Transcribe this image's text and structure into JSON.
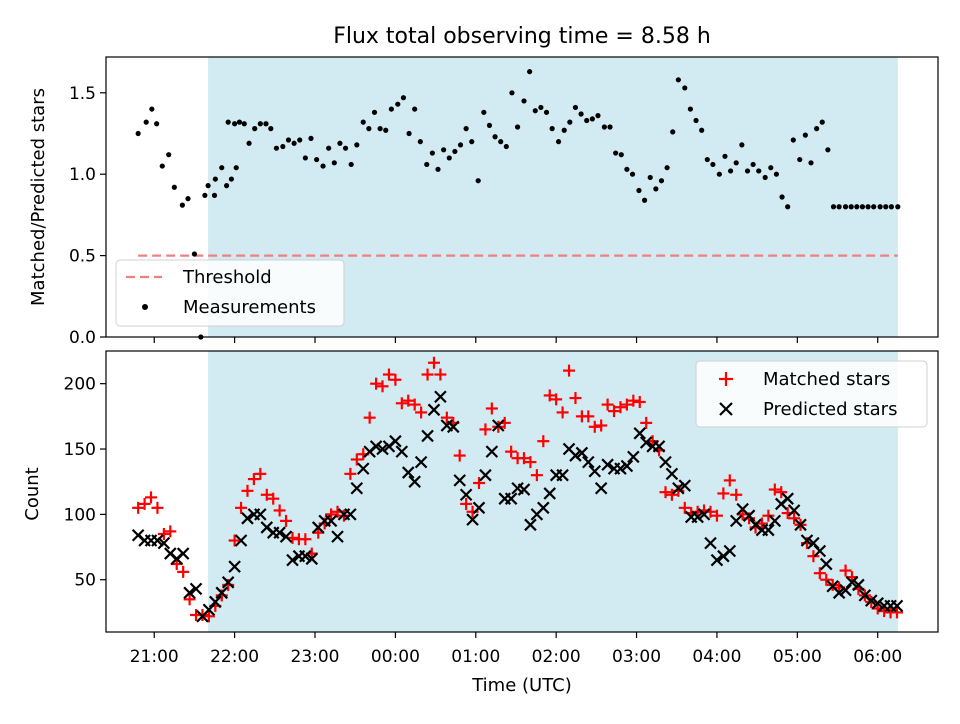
{
  "chart_data": [
    {
      "type": "scatter",
      "title": "Flux total observing time = 8.58 h",
      "xlabel": "",
      "ylabel": "Matched/Predicted stars",
      "ylim": [
        0,
        1.72
      ],
      "yticks": [
        "0.0",
        "0.5",
        "1.0",
        "1.5"
      ],
      "ytick_values": [
        0,
        0.5,
        1.0,
        1.5
      ],
      "grid": false,
      "legend_position": "lower-left",
      "shaded_span_hours": [
        21.67,
        30.25
      ],
      "shaded_color": "#add8e6",
      "threshold": {
        "name": "Threshold",
        "value": 0.5,
        "x_start": 20.8,
        "x_end": 30.25,
        "color": "#f08080"
      },
      "measurements": {
        "name": "Measurements",
        "color": "#000000",
        "x_hours": [
          20.8,
          20.9,
          20.97,
          21.03,
          21.1,
          21.18,
          21.25,
          21.35,
          21.42,
          21.5,
          21.58,
          21.63,
          21.67,
          21.76,
          21.84,
          21.92,
          22.0,
          21.75,
          21.9,
          21.96,
          22.02,
          22.06,
          22.12,
          22.18,
          22.25,
          22.32,
          22.39,
          22.45,
          22.52,
          22.6,
          22.67,
          22.74,
          22.81,
          22.88,
          22.95,
          23.02,
          23.1,
          23.17,
          23.24,
          23.31,
          23.38,
          23.45,
          23.52,
          23.6,
          23.67,
          23.74,
          23.81,
          23.88,
          23.95,
          24.03,
          24.1,
          24.17,
          24.24,
          24.31,
          24.39,
          24.46,
          24.53,
          24.6,
          24.67,
          24.74,
          24.81,
          24.88,
          24.95,
          25.03,
          25.1,
          25.17,
          25.24,
          25.31,
          25.38,
          25.45,
          25.52,
          25.6,
          25.67,
          25.74,
          25.81,
          25.88,
          25.95,
          26.03,
          26.1,
          26.17,
          26.24,
          26.31,
          26.38,
          26.45,
          26.52,
          26.6,
          26.67,
          26.74,
          26.81,
          26.88,
          26.95,
          27.03,
          27.1,
          27.17,
          27.24,
          27.31,
          27.38,
          27.45,
          27.52,
          27.6,
          27.67,
          27.74,
          27.81,
          27.88,
          27.95,
          28.03,
          28.1,
          28.17,
          28.24,
          28.31,
          28.38,
          28.45,
          28.52,
          28.6,
          28.67,
          28.74,
          28.81,
          28.88,
          28.95,
          29.03,
          29.1,
          29.17,
          29.24,
          29.31,
          29.38,
          29.45,
          29.52,
          29.6,
          29.67,
          29.74,
          29.81,
          29.88,
          29.95,
          30.03,
          30.1,
          30.17,
          30.25
        ],
        "y": [
          1.25,
          1.32,
          1.4,
          1.31,
          1.05,
          1.12,
          0.92,
          0.81,
          0.85,
          0.51,
          0.0,
          0.87,
          0.93,
          0.97,
          1.04,
          1.32,
          1.31,
          0.87,
          0.93,
          0.97,
          1.04,
          1.32,
          1.31,
          1.19,
          1.28,
          1.31,
          1.31,
          1.28,
          1.16,
          1.17,
          1.21,
          1.19,
          1.21,
          1.1,
          1.22,
          1.09,
          1.05,
          1.16,
          1.07,
          1.19,
          1.16,
          1.06,
          1.18,
          1.32,
          1.28,
          1.38,
          1.28,
          1.27,
          1.4,
          1.43,
          1.47,
          1.25,
          1.4,
          1.2,
          1.06,
          1.13,
          1.03,
          1.15,
          1.1,
          1.14,
          1.18,
          1.28,
          1.2,
          0.96,
          1.38,
          1.3,
          1.23,
          1.2,
          1.17,
          1.5,
          1.29,
          1.45,
          1.63,
          1.39,
          1.41,
          1.38,
          1.28,
          1.2,
          1.27,
          1.32,
          1.41,
          1.37,
          1.33,
          1.34,
          1.36,
          1.29,
          1.29,
          1.13,
          1.12,
          1.03,
          1.0,
          0.9,
          0.84,
          0.98,
          0.91,
          0.96,
          1.04,
          1.26,
          1.58,
          1.53,
          1.4,
          1.33,
          1.27,
          1.09,
          1.06,
          1.0,
          1.11,
          1.02,
          1.07,
          1.18,
          1.02,
          1.06,
          1.02,
          0.98,
          1.04,
          1.0,
          0.86,
          0.8,
          1.21,
          1.09,
          1.24,
          1.07,
          1.28,
          1.32,
          1.15,
          0.8,
          0.8,
          0.8,
          0.8,
          0.8,
          0.8,
          0.8,
          0.8,
          0.8,
          0.8,
          0.8,
          0.8
        ]
      }
    },
    {
      "type": "scatter",
      "title": "",
      "xlabel": "Time (UTC)",
      "ylabel": "Count",
      "ylim": [
        10,
        225
      ],
      "yticks": [
        "50",
        "100",
        "150",
        "200"
      ],
      "ytick_values": [
        50,
        100,
        150,
        200
      ],
      "xticks": [
        "21:00",
        "22:00",
        "23:00",
        "00:00",
        "01:00",
        "02:00",
        "03:00",
        "04:00",
        "05:00",
        "06:00"
      ],
      "xtick_hours": [
        21,
        22,
        23,
        24,
        25,
        26,
        27,
        28,
        29,
        30
      ],
      "xlim_hours": [
        20.4,
        30.75
      ],
      "grid": false,
      "legend_position": "top-right",
      "shaded_span_hours": [
        21.67,
        30.25
      ],
      "series": [
        {
          "name": "Matched stars",
          "color": "#ff0000",
          "marker": "+",
          "x_hours": [
            20.8,
            20.88,
            20.96,
            21.04,
            21.12,
            21.2,
            21.28,
            21.36,
            21.44,
            21.52,
            21.6,
            21.68,
            21.76,
            21.84,
            21.92,
            22.0,
            22.08,
            22.16,
            22.24,
            22.32,
            22.4,
            22.48,
            22.56,
            22.64,
            22.72,
            22.8,
            22.88,
            22.96,
            23.04,
            23.12,
            23.2,
            23.28,
            23.36,
            23.44,
            23.52,
            23.6,
            23.68,
            23.76,
            23.84,
            23.92,
            24.0,
            24.08,
            24.16,
            24.24,
            24.32,
            24.4,
            24.48,
            24.56,
            24.64,
            24.72,
            24.8,
            24.88,
            24.96,
            25.04,
            25.12,
            25.2,
            25.28,
            25.36,
            25.44,
            25.52,
            25.6,
            25.68,
            25.76,
            25.84,
            25.92,
            26.0,
            26.08,
            26.16,
            26.24,
            26.32,
            26.4,
            26.48,
            26.56,
            26.64,
            26.72,
            26.8,
            26.88,
            26.96,
            27.04,
            27.12,
            27.2,
            27.28,
            27.36,
            27.44,
            27.52,
            27.6,
            27.68,
            27.76,
            27.84,
            27.92,
            28.0,
            28.08,
            28.16,
            28.24,
            28.32,
            28.4,
            28.48,
            28.56,
            28.64,
            28.72,
            28.8,
            28.88,
            28.96,
            29.04,
            29.12,
            29.2,
            29.28,
            29.36,
            29.44,
            29.52,
            29.6,
            29.68,
            29.76,
            29.84,
            29.92,
            30.0,
            30.08,
            30.16,
            30.24
          ],
          "y": [
            105,
            108,
            113,
            105,
            85,
            87,
            62,
            56,
            35,
            23,
            23,
            22,
            30,
            38,
            46,
            80,
            105,
            118,
            127,
            131,
            115,
            112,
            103,
            95,
            82,
            81,
            81,
            70,
            86,
            93,
            100,
            102,
            99,
            131,
            142,
            146,
            174,
            200,
            198,
            207,
            203,
            185,
            187,
            184,
            178,
            207,
            216,
            207,
            174,
            170,
            145,
            108,
            102,
            124,
            165,
            181,
            167,
            170,
            148,
            143,
            143,
            140,
            130,
            156,
            191,
            188,
            178,
            210,
            189,
            175,
            175,
            167,
            168,
            184,
            179,
            182,
            184,
            187,
            186,
            170,
            156,
            149,
            117,
            115,
            118,
            105,
            101,
            102,
            103,
            102,
            99,
            116,
            126,
            115,
            100,
            97,
            90,
            93,
            99,
            119,
            117,
            101,
            97,
            92,
            78,
            68,
            55,
            50,
            46,
            44,
            57,
            52,
            43,
            38,
            33,
            28,
            26,
            25,
            25
          ]
        },
        {
          "name": "Predicted stars",
          "color": "#000000",
          "marker": "x",
          "x_hours": [
            20.8,
            20.88,
            20.96,
            21.04,
            21.12,
            21.2,
            21.28,
            21.36,
            21.44,
            21.52,
            21.6,
            21.68,
            21.76,
            21.84,
            21.92,
            22.0,
            22.08,
            22.16,
            22.24,
            22.32,
            22.4,
            22.48,
            22.56,
            22.64,
            22.72,
            22.8,
            22.88,
            22.96,
            23.04,
            23.12,
            23.2,
            23.28,
            23.36,
            23.44,
            23.52,
            23.6,
            23.68,
            23.76,
            23.84,
            23.92,
            24.0,
            24.08,
            24.16,
            24.24,
            24.32,
            24.4,
            24.48,
            24.56,
            24.64,
            24.72,
            24.8,
            24.88,
            24.96,
            25.04,
            25.12,
            25.2,
            25.28,
            25.36,
            25.44,
            25.52,
            25.6,
            25.68,
            25.76,
            25.84,
            25.92,
            26.0,
            26.08,
            26.16,
            26.24,
            26.32,
            26.4,
            26.48,
            26.56,
            26.64,
            26.72,
            26.8,
            26.88,
            26.96,
            27.04,
            27.12,
            27.2,
            27.28,
            27.36,
            27.44,
            27.52,
            27.6,
            27.68,
            27.76,
            27.84,
            27.92,
            28.0,
            28.08,
            28.16,
            28.24,
            28.32,
            28.4,
            28.48,
            28.56,
            28.64,
            28.72,
            28.8,
            28.88,
            28.96,
            29.04,
            29.12,
            29.2,
            29.28,
            29.36,
            29.44,
            29.52,
            29.6,
            29.68,
            29.76,
            29.84,
            29.92,
            30.0,
            30.08,
            30.16,
            30.24
          ],
          "y": [
            84,
            80,
            80,
            80,
            78,
            70,
            66,
            70,
            40,
            43,
            22,
            27,
            33,
            40,
            48,
            60,
            80,
            97,
            100,
            100,
            90,
            86,
            86,
            83,
            65,
            68,
            68,
            66,
            90,
            95,
            95,
            83,
            100,
            100,
            120,
            135,
            148,
            152,
            150,
            152,
            156,
            148,
            132,
            125,
            140,
            160,
            180,
            190,
            168,
            167,
            126,
            115,
            96,
            105,
            130,
            148,
            168,
            112,
            112,
            120,
            119,
            92,
            100,
            105,
            116,
            130,
            130,
            150,
            145,
            147,
            140,
            133,
            120,
            138,
            135,
            135,
            137,
            144,
            162,
            155,
            152,
            152,
            140,
            131,
            120,
            122,
            98,
            98,
            100,
            78,
            65,
            68,
            72,
            95,
            104,
            99,
            92,
            88,
            88,
            95,
            108,
            112,
            103,
            92,
            80,
            78,
            72,
            62,
            45,
            40,
            42,
            48,
            46,
            38,
            34,
            32,
            30,
            30,
            30
          ]
        }
      ]
    }
  ]
}
